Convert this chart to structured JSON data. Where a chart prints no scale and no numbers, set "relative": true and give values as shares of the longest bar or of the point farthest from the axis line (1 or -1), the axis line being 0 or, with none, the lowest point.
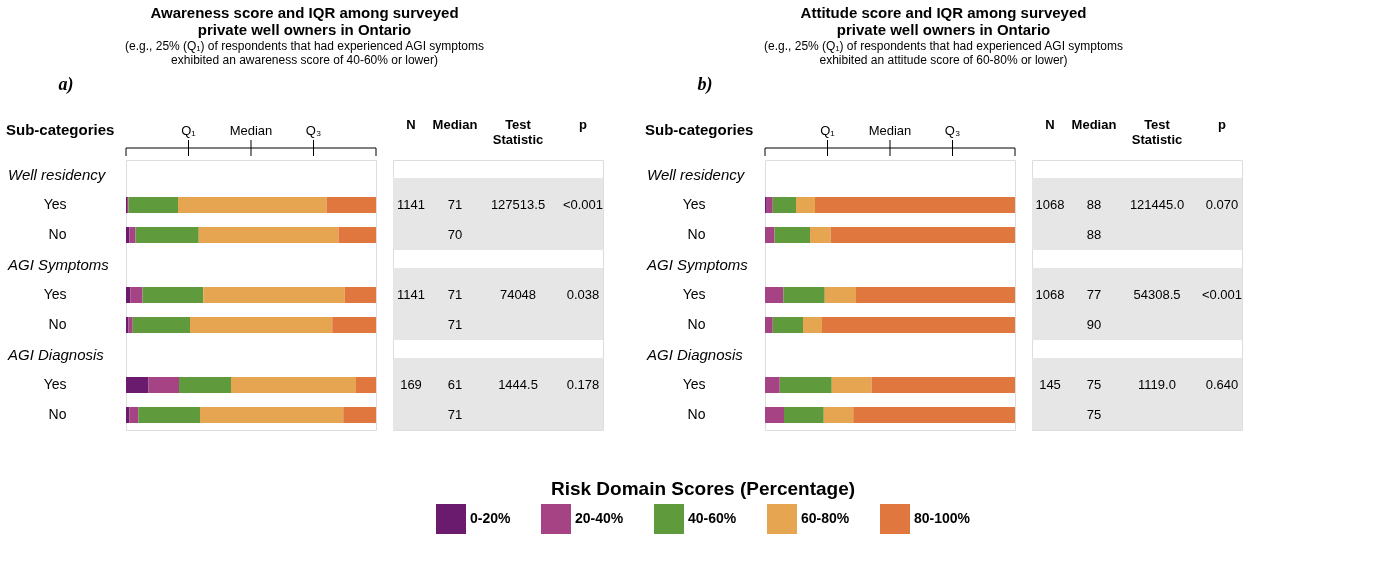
{
  "chart_data": [
    {
      "type": "bar",
      "orientation": "horizontal",
      "stacked": true,
      "relative": true,
      "title": "Awareness score and IQR among surveyed private well owners in Ontario",
      "subtitle": "(e.g., 25% (Q₁) of respondents that had experienced AGI symptoms exhibited an awareness score of 40-60% or lower)",
      "categories": [
        "Yes",
        "No",
        "Yes",
        "No",
        "Yes",
        "No"
      ],
      "series": [
        {
          "name": "0-20%",
          "color": "#6a1b6e",
          "values": [
            0.004,
            0.014,
            0.017,
            0.01,
            0.09,
            0.014
          ]
        },
        {
          "name": "20-40%",
          "color": "#a64385",
          "values": [
            0.006,
            0.024,
            0.049,
            0.017,
            0.122,
            0.035
          ]
        },
        {
          "name": "40-60%",
          "color": "#5f9a3c",
          "values": [
            0.198,
            0.253,
            0.243,
            0.229,
            0.208,
            0.247
          ]
        },
        {
          "name": "60-80%",
          "color": "#e5a551",
          "values": [
            0.594,
            0.559,
            0.566,
            0.569,
            0.5,
            0.573
          ]
        },
        {
          "name": "80-100%",
          "color": "#e0773e",
          "values": [
            0.198,
            0.15,
            0.125,
            0.175,
            0.08,
            0.131
          ]
        }
      ],
      "legend": "bottom",
      "legend_title": "Risk Domain Scores (Percentage)",
      "grid": false,
      "annotations": [
        "a)",
        "Well residency",
        "AGI Symptoms",
        "AGI Diagnosis",
        "Sub-categories",
        "N",
        "Median",
        "Test Statistic",
        "p",
        "1141",
        "71",
        "127513.5",
        "<0.001",
        "70",
        "1141",
        "71",
        "74048",
        "0.038",
        "71",
        "169",
        "61",
        "1444.5",
        "0.178",
        "71",
        "Q₁",
        "Median",
        "Q₃"
      ]
    },
    {
      "type": "bar",
      "orientation": "horizontal",
      "stacked": true,
      "relative": true,
      "title": "Attitude score and IQR among surveyed private well owners in Ontario",
      "subtitle": "(e.g., 25% (Q₁) of respondents that had experienced AGI symptoms exhibited an attitude score of 60-80% or lower)",
      "categories": [
        "Yes",
        "No",
        "Yes",
        "No",
        "Yes",
        "No"
      ],
      "series": [
        {
          "name": "0-20%",
          "color": "#6a1b6e",
          "values": [
            0.007,
            0.003,
            0,
            0.003,
            0,
            0
          ]
        },
        {
          "name": "20-40%",
          "color": "#a64385",
          "values": [
            0.024,
            0.035,
            0.073,
            0.028,
            0.059,
            0.076
          ]
        },
        {
          "name": "40-60%",
          "color": "#5f9a3c",
          "values": [
            0.093,
            0.142,
            0.166,
            0.121,
            0.208,
            0.159
          ]
        },
        {
          "name": "60-80%",
          "color": "#e5a551",
          "values": [
            0.076,
            0.083,
            0.125,
            0.076,
            0.159,
            0.118
          ]
        },
        {
          "name": "80-100%",
          "color": "#e0773e",
          "values": [
            0.8,
            0.737,
            0.636,
            0.772,
            0.574,
            0.647
          ]
        }
      ],
      "grid": false,
      "annotations": [
        "b)",
        "Well residency",
        "AGI Symptoms",
        "AGI Diagnosis",
        "Sub-categories",
        "N",
        "Median",
        "Test Statistic",
        "p",
        "1068",
        "88",
        "121445.0",
        "0.070",
        "88",
        "1068",
        "77",
        "54308.5",
        "<0.001",
        "90",
        "145",
        "75",
        "1119.0",
        "0.640",
        "75",
        "Q₁",
        "Median",
        "Q₃"
      ]
    }
  ]
}
